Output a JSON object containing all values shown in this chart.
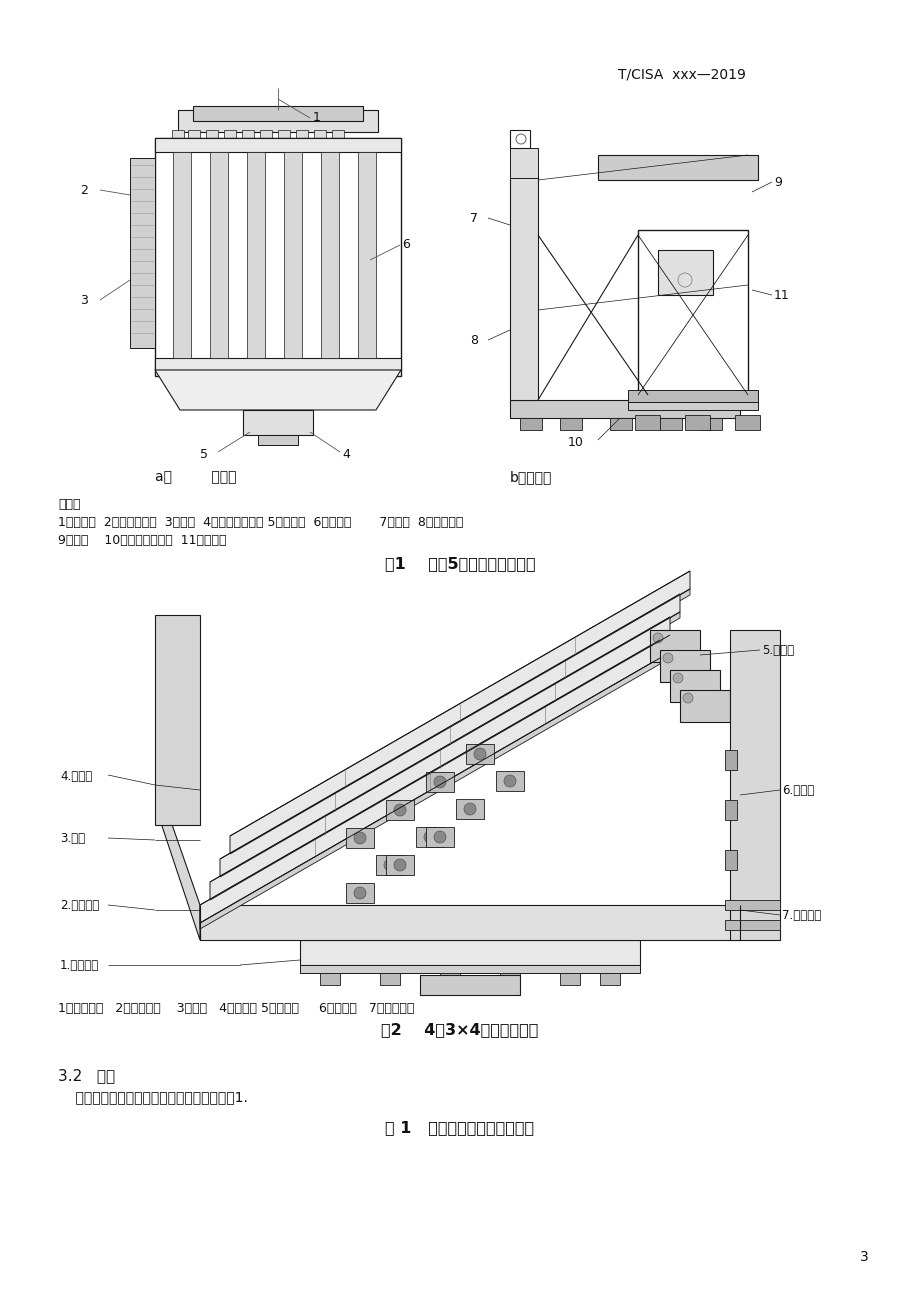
{
  "page_width": 9.2,
  "page_height": 13.02,
  "bg_color": "#ffffff",
  "header_text": "T/CISA  xxx—2019",
  "fig1_caption_a": "a）         主视图",
  "fig1_caption_b": "b）左视图",
  "fig1_note_line1": "说明：",
  "fig1_note_line2": "1、给料筱  2、不锈钙筛片  3、隔板  4、筛上产品料筱 5、下料管  6、分料口       7、框架  8、支撇瓦座",
  "fig1_note_line3": "9、护板    10、筛下产品料筱  11、振动器",
  "fig1_title": "图1    单層5筛道高频振动细筛",
  "fig2_caption": "1、筛机底座   2、下集料槽    3、筛框   4、主框架 5、给料筱     6、轴承座   7、减震胶帢",
  "fig2_title": "图2    4層3×4筛道振动细筛",
  "section_title": "3.2   参数",
  "section_body": "    不锈钙板筛片高频振动细筛的基本参数见表1.",
  "table_title": "表 1   高频振动细筛的基本参数",
  "page_num": "3",
  "lc": "#1a1a1a",
  "lw": 0.7
}
